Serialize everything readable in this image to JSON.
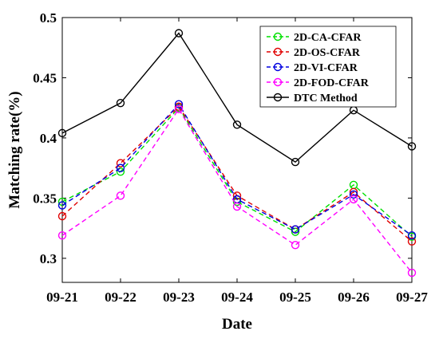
{
  "chart_data": {
    "type": "line",
    "title": "",
    "xlabel": "Date",
    "ylabel": "Matching rate(%)",
    "categories": [
      "09-21",
      "09-22",
      "09-23",
      "09-24",
      "09-25",
      "09-26",
      "09-27"
    ],
    "ylim": [
      0.28,
      0.5
    ],
    "yticks": [
      0.3,
      0.35,
      0.4,
      0.45,
      0.5
    ],
    "ytick_labels": [
      "0.3",
      "0.35",
      "0.4",
      "0.45",
      "0.5"
    ],
    "grid": false,
    "legend_position": "top-right",
    "series": [
      {
        "name": "2D-CA-CFAR",
        "color": "#00e000",
        "dash": "dashed",
        "values": [
          0.347,
          0.372,
          0.425,
          0.347,
          0.322,
          0.361,
          0.318
        ]
      },
      {
        "name": "2D-OS-CFAR",
        "color": "#e00000",
        "dash": "dashed",
        "values": [
          0.335,
          0.379,
          0.426,
          0.352,
          0.324,
          0.355,
          0.314
        ]
      },
      {
        "name": "2D-VI-CFAR",
        "color": "#0000e0",
        "dash": "dashed",
        "values": [
          0.344,
          0.375,
          0.428,
          0.349,
          0.324,
          0.353,
          0.319
        ]
      },
      {
        "name": "2D-FOD-CFAR",
        "color": "#ff00ff",
        "dash": "dashed",
        "values": [
          0.319,
          0.352,
          0.424,
          0.343,
          0.311,
          0.349,
          0.288
        ]
      },
      {
        "name": "DTC Method",
        "color": "#000000",
        "dash": "solid",
        "values": [
          0.404,
          0.429,
          0.487,
          0.411,
          0.38,
          0.423,
          0.393
        ]
      }
    ]
  }
}
